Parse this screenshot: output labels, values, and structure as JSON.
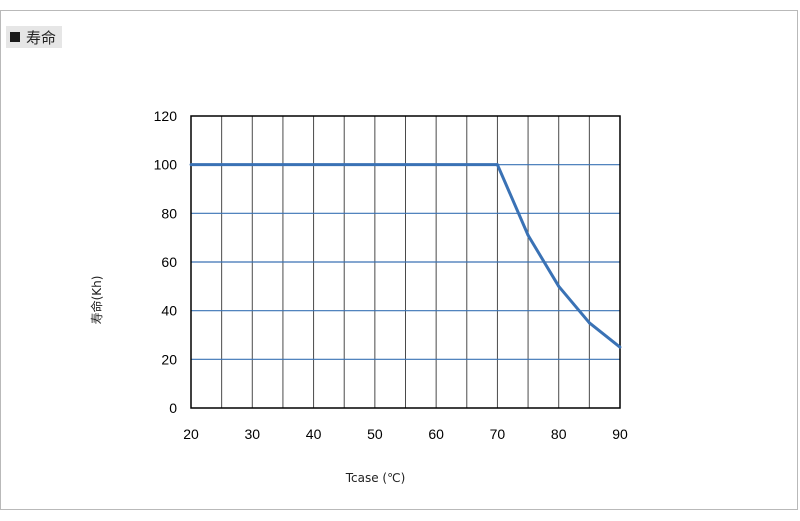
{
  "section": {
    "label": "寿命"
  },
  "chart_data": {
    "type": "line",
    "xlabel": "Tcase (℃)",
    "ylabel": "寿命(Kh)",
    "xlim": [
      20,
      90
    ],
    "ylim": [
      0,
      120
    ],
    "x_ticks": [
      20,
      30,
      40,
      50,
      60,
      70,
      80,
      90
    ],
    "y_ticks": [
      0,
      20,
      40,
      60,
      80,
      100,
      120
    ],
    "x_minor_step": 5,
    "grid": true,
    "legend": "none",
    "series": [
      {
        "color": "#3a72b5",
        "x": [
          20,
          25,
          30,
          35,
          40,
          45,
          50,
          55,
          60,
          65,
          70,
          75,
          80,
          85,
          90
        ],
        "y": [
          100,
          100,
          100,
          100,
          100,
          100,
          100,
          100,
          100,
          100,
          100,
          71,
          50,
          35,
          25
        ]
      }
    ]
  },
  "colors": {
    "line": "#3a72b5",
    "hgrid": "#3a72b5",
    "vgrid": "#4a4a4a",
    "frame": "#000000"
  }
}
